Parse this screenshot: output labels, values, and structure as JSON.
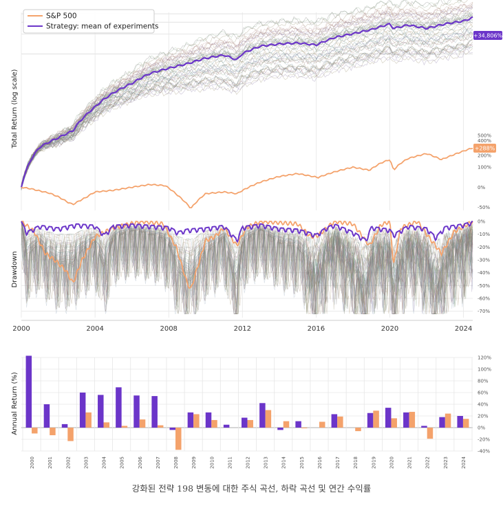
{
  "caption": "강화된 전략 198 변동에 대한 주식 곡선, 하락 곡선 및 연간 수익률",
  "colors": {
    "sp500": "#f4a26b",
    "strategy": "#6b35c9",
    "grid": "#e6e6e6"
  },
  "chart_data": [
    {
      "type": "line",
      "name": "total-return",
      "ylabel": "Total Return (log scale)",
      "yscale": "log",
      "legend": {
        "placement": "top-left",
        "entries": [
          "S&P 500",
          "Strategy: mean of experiments"
        ]
      },
      "y_ticks": [
        "500%",
        "400%",
        "300%",
        "200%",
        "100%",
        "0%",
        "-50%"
      ],
      "end_labels": {
        "strategy": "+34,806%",
        "sp500": "+288%"
      },
      "x_ticks": [
        "2000",
        "2004",
        "2008",
        "2012",
        "2016",
        "2020",
        "2024"
      ],
      "grid": true,
      "series": [
        {
          "name": "S&P 500",
          "x": [
            2000.0,
            2000.5,
            2001.0,
            2001.5,
            2002.0,
            2002.5,
            2002.8,
            2003.5,
            2004.0,
            2005.0,
            2006.0,
            2007.0,
            2007.8,
            2008.5,
            2009.2,
            2010.0,
            2011.0,
            2011.7,
            2012.5,
            2013.0,
            2014.0,
            2015.0,
            2016.1,
            2017.0,
            2018.0,
            2018.9,
            2019.5,
            2020.0,
            2020.2,
            2020.6,
            2021.0,
            2022.0,
            2022.8,
            2023.5,
            2024.5
          ],
          "values": [
            0,
            -5,
            -12,
            -18,
            -28,
            -40,
            -45,
            -30,
            -15,
            -10,
            0,
            10,
            6,
            -25,
            -52,
            -20,
            -15,
            -20,
            5,
            20,
            45,
            60,
            40,
            70,
            100,
            80,
            130,
            160,
            80,
            130,
            170,
            220,
            160,
            210,
            288
          ]
        },
        {
          "name": "Strategy: mean of experiments",
          "x": [
            2000.0,
            2000.5,
            2001.0,
            2002.0,
            2002.8,
            2003.5,
            2004.0,
            2005.0,
            2006.0,
            2007.0,
            2008.0,
            2009.0,
            2010.0,
            2011.0,
            2011.7,
            2012.0,
            2013.0,
            2014.0,
            2015.0,
            2016.0,
            2017.0,
            2018.0,
            2019.0,
            2020.0,
            2020.2,
            2021.0,
            2022.0,
            2023.0,
            2024.0,
            2024.5
          ],
          "values": [
            0,
            150,
            300,
            450,
            600,
            1100,
            1500,
            2500,
            3500,
            5000,
            6000,
            7000,
            8500,
            9500,
            8000,
            10000,
            13000,
            14000,
            14500,
            13500,
            17500,
            20000,
            23000,
            28000,
            24000,
            27000,
            24000,
            28000,
            31000,
            34806
          ]
        }
      ],
      "experiments_count": 198
    },
    {
      "type": "area",
      "name": "drawdown",
      "ylabel": "Drawdown",
      "y_ticks": [
        "0%",
        "-10%",
        "-20%",
        "-30%",
        "-40%",
        "-50%",
        "-60%",
        "-70%"
      ],
      "ylim": [
        -75,
        0
      ],
      "x_ticks": [
        "2000",
        "2004",
        "2008",
        "2012",
        "2016",
        "2020",
        "2024"
      ],
      "grid": true,
      "series": [
        {
          "name": "S&P 500",
          "x": [
            2000.0,
            2000.7,
            2001.3,
            2001.8,
            2002.4,
            2002.8,
            2003.3,
            2004.0,
            2005.0,
            2006.5,
            2007.7,
            2008.4,
            2009.0,
            2009.2,
            2010.0,
            2010.5,
            2011.0,
            2011.7,
            2012.2,
            2013.0,
            2015.0,
            2015.7,
            2016.1,
            2017.0,
            2018.0,
            2018.9,
            2019.5,
            2020.0,
            2020.2,
            2020.6,
            2021.5,
            2022.0,
            2022.8,
            2023.5,
            2024.5
          ],
          "values": [
            0,
            -8,
            -25,
            -30,
            -38,
            -48,
            -30,
            -12,
            -5,
            0,
            -2,
            -20,
            -48,
            -53,
            -15,
            -12,
            -5,
            -19,
            -5,
            0,
            -2,
            -12,
            -11,
            0,
            -2,
            -19,
            -3,
            0,
            -34,
            -5,
            0,
            -10,
            -25,
            -8,
            0
          ]
        },
        {
          "name": "Strategy: mean of experiments",
          "x": [
            2000.0,
            2000.3,
            2001.0,
            2002.0,
            2003.0,
            2004.0,
            2004.5,
            2005.0,
            2006.0,
            2007.0,
            2008.0,
            2008.5,
            2009.0,
            2010.0,
            2011.0,
            2011.7,
            2012.0,
            2013.0,
            2014.0,
            2015.0,
            2016.0,
            2016.5,
            2017.0,
            2018.0,
            2018.7,
            2019.0,
            2020.0,
            2020.2,
            2021.0,
            2022.0,
            2022.5,
            2023.0,
            2024.0,
            2024.5
          ],
          "values": [
            0,
            -8,
            -3,
            -5,
            -2,
            -3,
            -10,
            -3,
            -2,
            -3,
            -4,
            -8,
            -6,
            -5,
            -3,
            -14,
            -4,
            -2,
            -5,
            -6,
            -10,
            -5,
            -2,
            -8,
            -14,
            -4,
            -6,
            -10,
            -3,
            -5,
            -12,
            -4,
            -2,
            0
          ]
        }
      ]
    },
    {
      "type": "bar",
      "name": "annual-return",
      "ylabel": "Annual Return (%)",
      "y_ticks": [
        "120%",
        "100%",
        "80%",
        "60%",
        "40%",
        "20%",
        "0%",
        "-20%",
        "-40%"
      ],
      "ylim": [
        -40,
        120
      ],
      "grid": true,
      "categories": [
        "2000",
        "2001",
        "2002",
        "2003",
        "2004",
        "2005",
        "2006",
        "2007",
        "2008",
        "2009",
        "2010",
        "2011",
        "2012",
        "2013",
        "2014",
        "2015",
        "2016",
        "2017",
        "2018",
        "2019",
        "2020",
        "2021",
        "2022",
        "2023",
        "2024"
      ],
      "series": [
        {
          "name": "Strategy: mean of experiments",
          "values": [
            123,
            40,
            6,
            60,
            56,
            69,
            55,
            54,
            -4,
            26,
            26,
            5,
            17,
            42,
            -4,
            11,
            0,
            23,
            0,
            25,
            34,
            26,
            3,
            18,
            20
          ]
        },
        {
          "name": "S&P 500",
          "values": [
            -10,
            -13,
            -23,
            26,
            9,
            3,
            14,
            4,
            -38,
            23,
            13,
            0,
            13,
            30,
            11,
            -1,
            10,
            19,
            -6,
            29,
            16,
            27,
            -19,
            24,
            15
          ]
        }
      ]
    }
  ]
}
